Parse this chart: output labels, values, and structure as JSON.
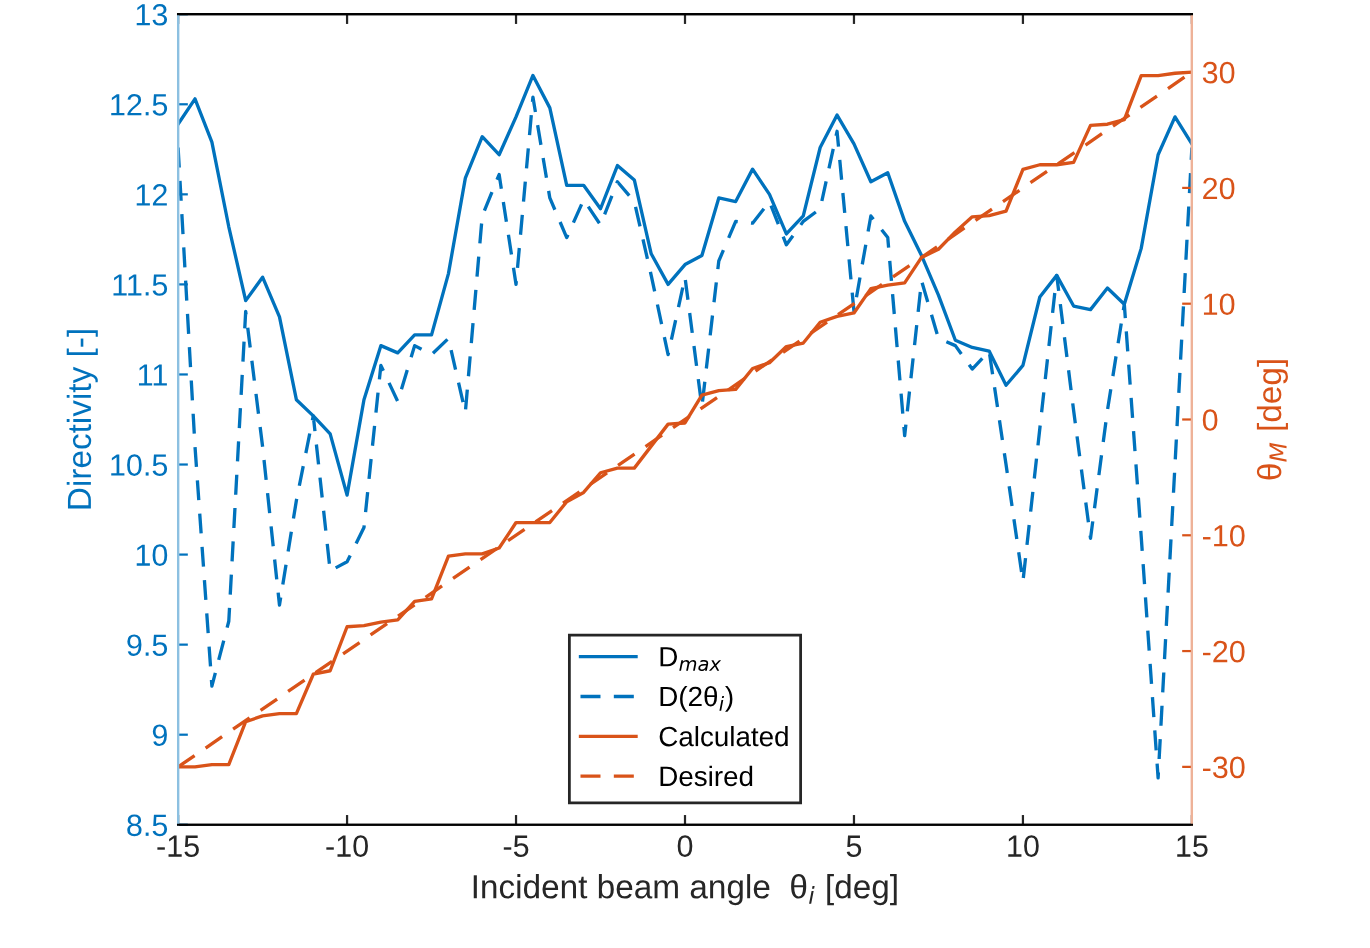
{
  "chart_data": {
    "type": "line",
    "xlabel": "Incident beam angle  θ$_{i}$ [deg]",
    "ylabel": "Directivity [-]",
    "y2label": "θ$_{M}$ [deg]",
    "x": [
      -15,
      -14.5,
      -14,
      -13.5,
      -13,
      -12.5,
      -12,
      -11.5,
      -11,
      -10.5,
      -10,
      -9.5,
      -9,
      -8.5,
      -8,
      -7.5,
      -7,
      -6.5,
      -6,
      -5.5,
      -5,
      -4.5,
      -4,
      -3.5,
      -3,
      -2.5,
      -2,
      -1.5,
      -1,
      -0.5,
      0,
      0.5,
      1,
      1.5,
      2,
      2.5,
      3,
      3.5,
      4,
      4.5,
      5,
      5.5,
      6,
      6.5,
      7,
      7.5,
      8,
      8.5,
      9,
      9.5,
      10,
      10.5,
      11,
      11.5,
      12,
      12.5,
      13,
      13.5,
      14,
      14.5,
      15
    ],
    "series": [
      {
        "name": "D$_{max}$",
        "color": "#0072bd",
        "line_style": "solid",
        "values": [
          12.39,
          12.53,
          12.29,
          11.82,
          11.41,
          11.54,
          11.32,
          10.86,
          10.77,
          10.67,
          10.33,
          10.86,
          11.16,
          11.12,
          11.22,
          11.22,
          11.56,
          12.09,
          12.32,
          12.22,
          12.43,
          12.66,
          12.48,
          12.05,
          12.05,
          11.92,
          12.16,
          12.08,
          11.67,
          11.5,
          11.61,
          11.66,
          11.98,
          11.96,
          12.14,
          12.0,
          11.78,
          11.88,
          12.26,
          12.44,
          12.28,
          12.07,
          12.12,
          11.85,
          11.66,
          11.44,
          11.19,
          11.15,
          11.13,
          10.94,
          11.05,
          11.43,
          11.55,
          11.38,
          11.36,
          11.48,
          11.39,
          11.7,
          12.22,
          12.43,
          12.28
        ]
      },
      {
        "name": "D(2θ$_{i}$)",
        "color": "#0072bd",
        "line_style": "dashed",
        "values": [
          12.26,
          10.6,
          9.27,
          9.63,
          11.35,
          10.6,
          9.72,
          10.3,
          10.77,
          9.91,
          9.96,
          10.15,
          11.05,
          10.85,
          11.16,
          11.11,
          11.2,
          10.79,
          11.88,
          12.11,
          11.5,
          12.54,
          11.98,
          11.76,
          11.97,
          11.83,
          12.07,
          11.96,
          11.55,
          11.11,
          11.54,
          10.82,
          11.63,
          11.85,
          11.84,
          11.96,
          11.72,
          11.85,
          11.92,
          12.35,
          11.35,
          11.88,
          11.76,
          10.66,
          11.52,
          11.2,
          11.16,
          11.03,
          11.13,
          10.5,
          9.85,
          10.7,
          11.55,
          10.8,
          10.09,
          10.8,
          11.39,
          10.1,
          8.76,
          10.5,
          12.26
        ]
      },
      {
        "name": "Calculated",
        "color": "#d95319",
        "line_style": "solid",
        "axis": "y2",
        "values": [
          -30.0,
          -30.0,
          -29.8,
          -29.8,
          -26.1,
          -25.6,
          -25.4,
          -25.4,
          -22.0,
          -21.7,
          -17.9,
          -17.8,
          -17.5,
          -17.3,
          -15.7,
          -15.5,
          -11.8,
          -11.6,
          -11.6,
          -11.1,
          -8.9,
          -8.9,
          -8.9,
          -7.1,
          -6.3,
          -4.6,
          -4.2,
          -4.2,
          -2.3,
          -0.4,
          -0.3,
          2.1,
          2.5,
          2.6,
          4.4,
          4.9,
          6.3,
          6.6,
          8.4,
          8.9,
          9.2,
          11.3,
          11.6,
          11.8,
          14.0,
          14.7,
          16.2,
          17.5,
          17.6,
          18.0,
          21.6,
          22.0,
          22.0,
          22.2,
          25.4,
          25.5,
          25.9,
          29.7,
          29.7,
          29.9,
          30.0
        ]
      },
      {
        "name": "Desired",
        "color": "#d95319",
        "line_style": "dashed",
        "axis": "y2",
        "x": [
          -15,
          15
        ],
        "values": [
          -30,
          30
        ]
      }
    ],
    "xlim": [
      -15,
      15
    ],
    "xticks": [
      -15,
      -10,
      -5,
      0,
      5,
      10,
      15
    ],
    "ylim": [
      8.5,
      13
    ],
    "yticks": [
      8.5,
      9,
      9.5,
      10,
      10.5,
      11,
      11.5,
      12,
      12.5,
      13
    ],
    "y2lim": [
      -35,
      35
    ],
    "y2ticks": [
      -30,
      -20,
      -10,
      0,
      10,
      20,
      30
    ],
    "legend": "bottom",
    "grid": false
  }
}
